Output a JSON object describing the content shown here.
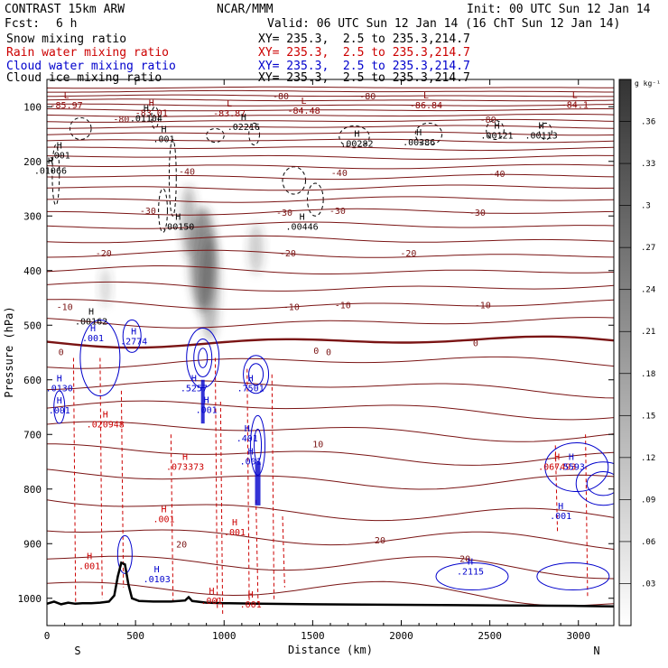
{
  "header": {
    "model": "CONTRAST 15km ARW",
    "org": "NCAR/MMM",
    "init": "Init: 00 UTC Sun 12 Jan 14",
    "fcst_label": "Fcst:",
    "fcst_value": "6 h",
    "valid": "Valid: 06 UTC Sun 12 Jan 14 (16 ChT Sun 12 Jan 14)",
    "fields": [
      {
        "name": "Snow mixing ratio",
        "xy": "XY= 235.3,  2.5 to 235.3,214.7",
        "color": "#000000"
      },
      {
        "name": "Rain water mixing ratio",
        "xy": "XY= 235.3,  2.5 to 235.3,214.7",
        "color": "#cc0000"
      },
      {
        "name": "Cloud water mixing ratio",
        "xy": "XY= 235.3,  2.5 to 235.3,214.7",
        "color": "#0000cc"
      },
      {
        "name": "Cloud ice mixing ratio",
        "xy": "XY= 235.3,  2.5 to 235.3,214.7",
        "color": "#000000"
      }
    ]
  },
  "chart_data": {
    "type": "cross-section contour",
    "xlabel": "Distance (km)",
    "ylabel": "Pressure (hPa)",
    "xlim": [
      0,
      3200
    ],
    "ylim": [
      1050,
      50
    ],
    "xticks": [
      0,
      500,
      1000,
      1500,
      2000,
      2500,
      3000
    ],
    "yticks": [
      100,
      200,
      300,
      400,
      500,
      600,
      700,
      800,
      900,
      1000
    ],
    "endpoints": {
      "left": "S",
      "right": "N"
    },
    "colorbar": {
      "unit": "g kg⁻¹",
      "levels": [
        ".03",
        ".06",
        ".09",
        ".12",
        ".15",
        ".18",
        ".21",
        ".24",
        ".27",
        ".3",
        ".33",
        ".36"
      ],
      "range": [
        0,
        0.39
      ]
    },
    "temperature_contours": [
      {
        "label": "-80",
        "x": 1320,
        "p": 80
      },
      {
        "label": "-80",
        "x": 1810,
        "p": 80
      },
      {
        "label": "-80",
        "x": 2490,
        "p": 123
      },
      {
        "label": "-80",
        "x": 420,
        "p": 122
      },
      {
        "label": "-40",
        "x": 790,
        "p": 218
      },
      {
        "label": "-40",
        "x": 1650,
        "p": 220
      },
      {
        "label": "-40",
        "x": 2540,
        "p": 222
      },
      {
        "label": "-30",
        "x": 570,
        "p": 290
      },
      {
        "label": "-30",
        "x": 1340,
        "p": 293
      },
      {
        "label": "-30",
        "x": 1640,
        "p": 290
      },
      {
        "label": "-30",
        "x": 2430,
        "p": 293
      },
      {
        "label": "-20",
        "x": 320,
        "p": 367
      },
      {
        "label": "-20",
        "x": 1360,
        "p": 367
      },
      {
        "label": "-20",
        "x": 2040,
        "p": 367
      },
      {
        "label": "-10",
        "x": 100,
        "p": 466
      },
      {
        "label": "-10",
        "x": 1380,
        "p": 466
      },
      {
        "label": "-10",
        "x": 1670,
        "p": 462
      },
      {
        "label": "-10",
        "x": 2460,
        "p": 462
      },
      {
        "label": "0",
        "x": 80,
        "p": 548
      },
      {
        "label": "0",
        "x": 1520,
        "p": 546
      },
      {
        "label": "0",
        "x": 2420,
        "p": 532
      },
      {
        "label": "0",
        "x": 1590,
        "p": 548
      },
      {
        "label": "10",
        "x": 1530,
        "p": 717
      },
      {
        "label": "20",
        "x": 760,
        "p": 900
      },
      {
        "label": "20",
        "x": 1880,
        "p": 893
      },
      {
        "label": "20",
        "x": 2360,
        "p": 927
      }
    ],
    "maxima": [
      {
        "kind": "L",
        "value": "-85.97",
        "x": 110,
        "p": 98,
        "color": "#8b0000"
      },
      {
        "kind": "H",
        "value": "-83.01",
        "x": 590,
        "p": 112,
        "color": "#8b0000"
      },
      {
        "kind": "L",
        "value": "-83.87",
        "x": 1030,
        "p": 113,
        "color": "#8b0000"
      },
      {
        "kind": "L",
        "value": "-84.48",
        "x": 1450,
        "p": 108,
        "color": "#8b0000"
      },
      {
        "kind": "L",
        "value": "-86.84",
        "x": 2140,
        "p": 98,
        "color": "#8b0000"
      },
      {
        "kind": "L",
        "value": "-84.1",
        "x": 2980,
        "p": 97,
        "color": "#8b0000"
      },
      {
        "kind": "H",
        "value": ".01104",
        "x": 560,
        "p": 122,
        "color": "#000000"
      },
      {
        "kind": "H",
        "value": ".02216",
        "x": 1110,
        "p": 138,
        "color": "#000000"
      },
      {
        "kind": "H",
        "value": ".00282",
        "x": 1750,
        "p": 168,
        "color": "#000000"
      },
      {
        "kind": "H",
        "value": ".00386",
        "x": 2100,
        "p": 166,
        "color": "#000000"
      },
      {
        "kind": "H",
        "value": ".00121",
        "x": 2540,
        "p": 153,
        "color": "#000000"
      },
      {
        "kind": "H",
        "value": ".00113",
        "x": 2790,
        "p": 153,
        "color": "#000000"
      },
      {
        "kind": "H",
        "value": ".001",
        "x": 660,
        "p": 160,
        "color": "#000000"
      },
      {
        "kind": "H",
        "value": ".01066",
        "x": 20,
        "p": 218,
        "color": "#000000"
      },
      {
        "kind": "H",
        "value": ".001",
        "x": 70,
        "p": 190,
        "color": "#000000"
      },
      {
        "kind": "H",
        "value": ".00150",
        "x": 740,
        "p": 320,
        "color": "#000000"
      },
      {
        "kind": "H",
        "value": ".00446",
        "x": 1440,
        "p": 320,
        "color": "#000000"
      },
      {
        "kind": "H",
        "value": ".00162",
        "x": 250,
        "p": 494,
        "color": "#000000"
      },
      {
        "kind": "H",
        "value": ".001",
        "x": 260,
        "p": 524,
        "color": "#0000cc"
      },
      {
        "kind": "H",
        "value": ".2774",
        "x": 490,
        "p": 530,
        "color": "#0000cc"
      },
      {
        "kind": "H",
        "value": ".0130",
        "x": 70,
        "p": 616,
        "color": "#0000cc"
      },
      {
        "kind": "H",
        "value": ".001",
        "x": 70,
        "p": 657,
        "color": "#0000cc"
      },
      {
        "kind": "H",
        "value": ".020948",
        "x": 330,
        "p": 682,
        "color": "#cc0000"
      },
      {
        "kind": "H",
        "value": ".5257",
        "x": 830,
        "p": 616,
        "color": "#0000cc"
      },
      {
        "kind": "H",
        "value": ".001",
        "x": 900,
        "p": 656,
        "color": "#0000cc"
      },
      {
        "kind": "H",
        "value": ".7501",
        "x": 1150,
        "p": 616,
        "color": "#0000cc"
      },
      {
        "kind": "H",
        "value": ".401",
        "x": 1130,
        "p": 708,
        "color": "#0000cc"
      },
      {
        "kind": "H",
        "value": ".001",
        "x": 1150,
        "p": 750,
        "color": "#0000cc"
      },
      {
        "kind": "H",
        "value": ".073373",
        "x": 780,
        "p": 760,
        "color": "#cc0000"
      },
      {
        "kind": "H",
        "value": ".001",
        "x": 660,
        "p": 856,
        "color": "#cc0000"
      },
      {
        "kind": "H",
        "value": ".001",
        "x": 1060,
        "p": 880,
        "color": "#cc0000"
      },
      {
        "kind": "H",
        "value": ".001",
        "x": 240,
        "p": 942,
        "color": "#cc0000"
      },
      {
        "kind": "H",
        "value": ".0103",
        "x": 620,
        "p": 966,
        "color": "#0000cc"
      },
      {
        "kind": "H",
        "value": ".001",
        "x": 930,
        "p": 1005,
        "color": "#cc0000"
      },
      {
        "kind": "H",
        "value": ".001",
        "x": 1150,
        "p": 1012,
        "color": "#cc0000"
      },
      {
        "kind": "H",
        "value": ".2115",
        "x": 2390,
        "p": 952,
        "color": "#0000cc"
      },
      {
        "kind": "H",
        "value": ".067493",
        "x": 2880,
        "p": 760,
        "color": "#cc0000"
      },
      {
        "kind": "H",
        "value": ".5593",
        "x": 2960,
        "p": 760,
        "color": "#0000cc"
      },
      {
        "kind": "H",
        "value": ".001",
        "x": 2900,
        "p": 850,
        "color": "#0000cc"
      }
    ],
    "terrain": {
      "x": [
        0,
        40,
        80,
        120,
        160,
        200,
        250,
        300,
        350,
        380,
        400,
        420,
        440,
        460,
        480,
        520,
        600,
        700,
        780,
        800,
        820,
        900,
        1000,
        1200,
        1500,
        2000,
        2500,
        3000,
        3200
      ],
      "p": [
        1010,
        1006,
        1011,
        1008,
        1010,
        1009,
        1009,
        1008,
        1006,
        995,
        960,
        935,
        938,
        975,
        1000,
        1005,
        1006,
        1006,
        1004,
        998,
        1005,
        1008,
        1009,
        1010,
        1011,
        1012,
        1013,
        1014,
        1015
      ]
    }
  }
}
